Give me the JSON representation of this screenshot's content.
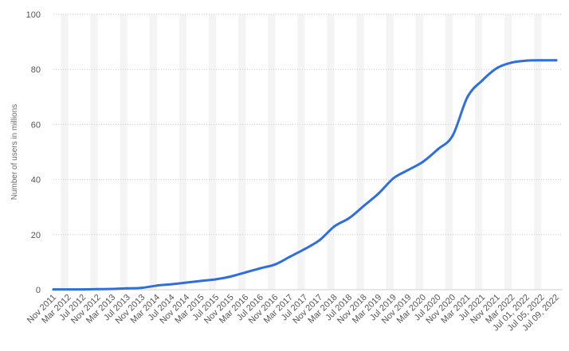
{
  "chart_data": {
    "type": "line",
    "title": "",
    "xlabel": "",
    "ylabel": "Number of users in millions",
    "ylim": [
      0,
      100
    ],
    "yticks": [
      0,
      20,
      40,
      60,
      80,
      100
    ],
    "grid": true,
    "categories": [
      "Nov 2011",
      "Mar 2012",
      "Jul 2012",
      "Nov 2012",
      "Mar 2013",
      "Jul 2013",
      "Nov 2013",
      "Mar 2014",
      "Jul 2014",
      "Nov 2014",
      "Mar 2015",
      "Jul 2015",
      "Nov 2015",
      "Mar 2016",
      "Jul 2016",
      "Nov 2016",
      "Mar 2017",
      "Jul 2017",
      "Nov 2017",
      "Mar 2018",
      "Jul 2018",
      "Nov 2018",
      "Mar 2019",
      "Jul 2019",
      "Nov 2019",
      "Mar 2020",
      "Jul 2020",
      "Nov 2020",
      "Mar 2021",
      "Jul 2021",
      "Nov 2021",
      "Mar 2022",
      "Jul 01, 2022",
      "Jul 05, 2022",
      "Jul 09, 2022"
    ],
    "series": [
      {
        "color": "#2f6fdb",
        "values": [
          0.1,
          0.1,
          0.1,
          0.2,
          0.3,
          0.5,
          0.7,
          1.5,
          2.0,
          2.6,
          3.2,
          3.8,
          4.8,
          6.3,
          7.8,
          9.2,
          12.0,
          14.8,
          18.0,
          23.0,
          26.0,
          30.5,
          35.0,
          40.5,
          43.5,
          46.5,
          51.0,
          56.0,
          70.0,
          76.0,
          80.5,
          82.5,
          83.2,
          83.3,
          83.3
        ]
      }
    ]
  }
}
